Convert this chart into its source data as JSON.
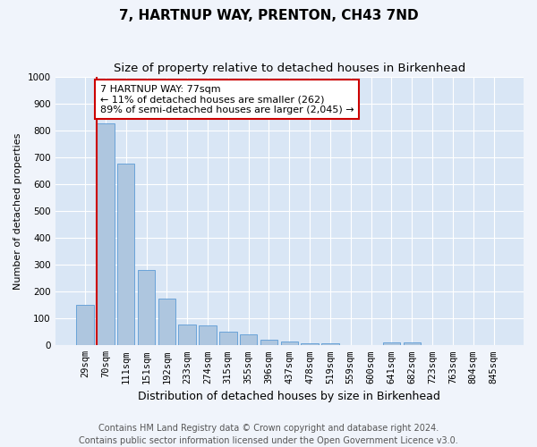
{
  "title1": "7, HARTNUP WAY, PRENTON, CH43 7ND",
  "title2": "Size of property relative to detached houses in Birkenhead",
  "xlabel": "Distribution of detached houses by size in Birkenhead",
  "ylabel": "Number of detached properties",
  "categories": [
    "29sqm",
    "70sqm",
    "111sqm",
    "151sqm",
    "192sqm",
    "233sqm",
    "274sqm",
    "315sqm",
    "355sqm",
    "396sqm",
    "437sqm",
    "478sqm",
    "519sqm",
    "559sqm",
    "600sqm",
    "641sqm",
    "682sqm",
    "723sqm",
    "763sqm",
    "804sqm",
    "845sqm"
  ],
  "values": [
    150,
    825,
    675,
    280,
    175,
    78,
    75,
    52,
    40,
    20,
    14,
    8,
    8,
    0,
    0,
    10,
    10,
    0,
    0,
    0,
    0
  ],
  "bar_color": "#aec6df",
  "bar_edge_color": "#5b9bd5",
  "highlight_index": 1,
  "highlight_line_color": "#cc0000",
  "annotation_text": "7 HARTNUP WAY: 77sqm\n← 11% of detached houses are smaller (262)\n89% of semi-detached houses are larger (2,045) →",
  "annotation_box_color": "#ffffff",
  "annotation_box_edge": "#cc0000",
  "ylim": [
    0,
    1000
  ],
  "yticks": [
    0,
    100,
    200,
    300,
    400,
    500,
    600,
    700,
    800,
    900,
    1000
  ],
  "fig_bg_color": "#f0f4fb",
  "plot_bg": "#d9e6f5",
  "footer_line1": "Contains HM Land Registry data © Crown copyright and database right 2024.",
  "footer_line2": "Contains public sector information licensed under the Open Government Licence v3.0.",
  "title1_fontsize": 11,
  "title2_fontsize": 9.5,
  "xlabel_fontsize": 9,
  "ylabel_fontsize": 8,
  "tick_fontsize": 7.5,
  "footer_fontsize": 7,
  "annot_fontsize": 8
}
